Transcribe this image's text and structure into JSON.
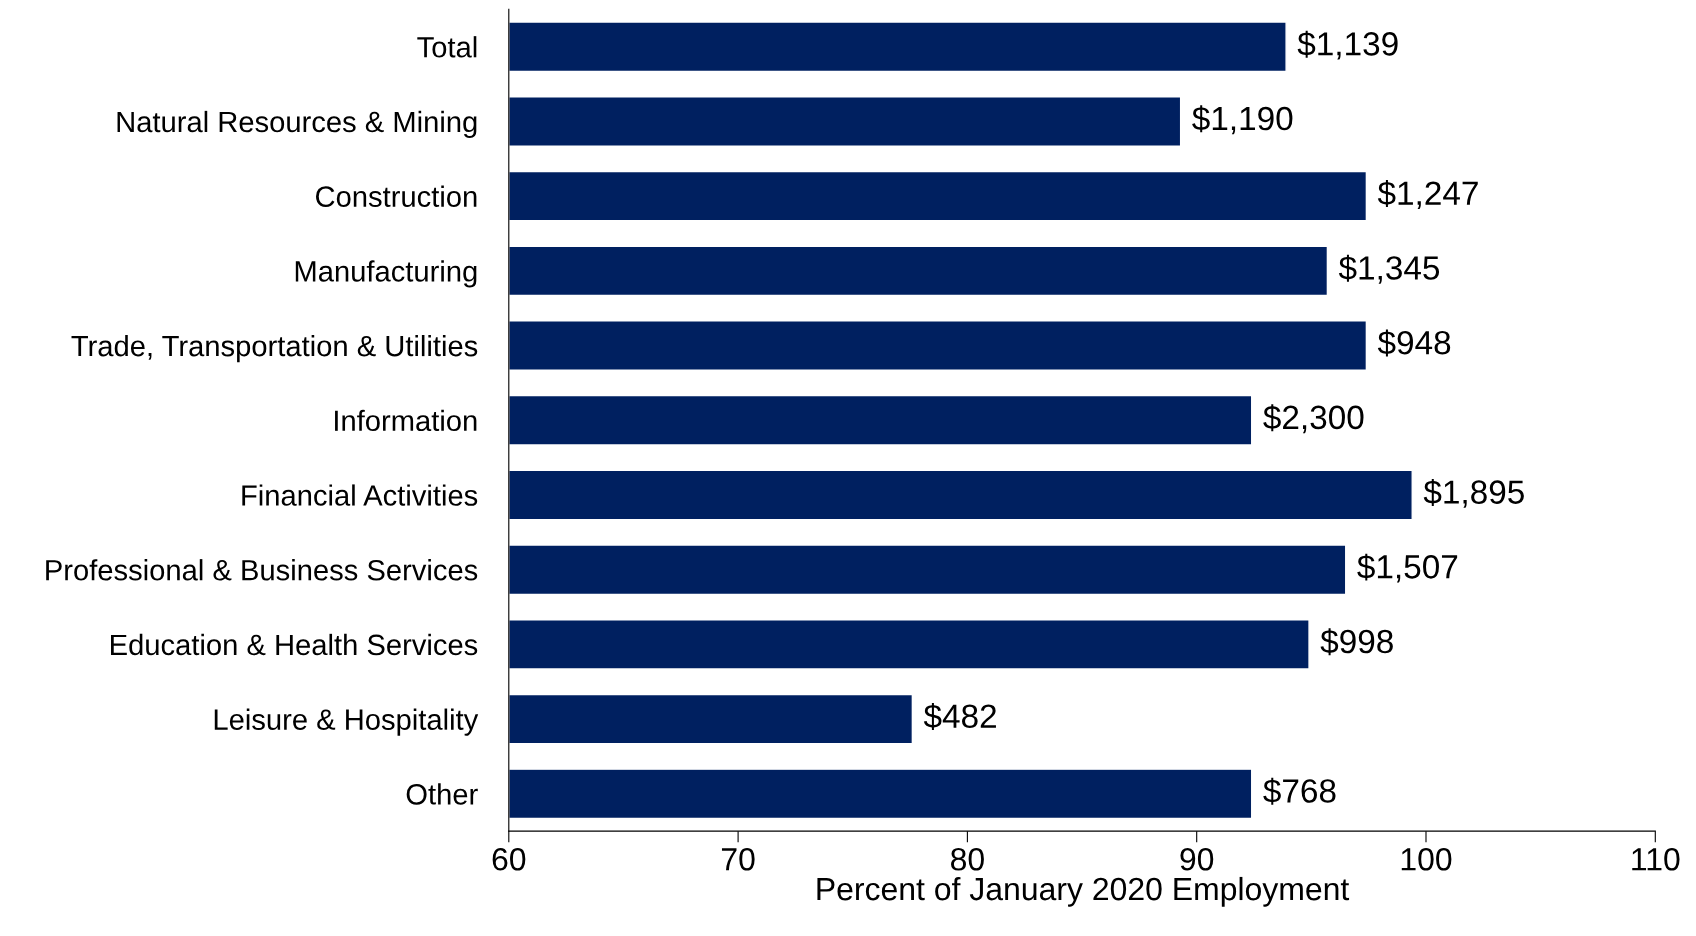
{
  "chart_data": {
    "type": "bar",
    "orientation": "horizontal",
    "xlabel": "Percent of January 2020 Employment",
    "categories": [
      "Total",
      "Natural Resources & Mining",
      "Construction",
      "Manufacturing",
      "Trade, Transportation & Utilities",
      "Information",
      "Financial Activities",
      "Professional & Business Services",
      "Education & Health Services",
      "Leisure & Hospitality",
      "Other"
    ],
    "values": [
      93.9,
      89.3,
      97.4,
      95.7,
      97.4,
      92.4,
      99.4,
      96.5,
      94.9,
      77.6,
      92.4
    ],
    "annotations": [
      {
        "text": "$1,139",
        "x": 93.9,
        "y": "Total"
      },
      {
        "text": "$1,190",
        "x": 89.3,
        "y": "Natural Resources & Mining"
      },
      {
        "text": "$1,247",
        "x": 97.4,
        "y": "Construction"
      },
      {
        "text": "$1,345",
        "x": 95.7,
        "y": "Manufacturing"
      },
      {
        "text": "$948",
        "x": 97.4,
        "y": "Trade, Transportation & Utilities"
      },
      {
        "text": "$2,300",
        "x": 92.4,
        "y": "Information"
      },
      {
        "text": "$1,895",
        "x": 99.4,
        "y": "Financial Activities"
      },
      {
        "text": "$1,507",
        "x": 96.5,
        "y": "Professional & Business Services"
      },
      {
        "text": "$998",
        "x": 94.9,
        "y": "Education & Health Services"
      },
      {
        "text": "$482",
        "x": 77.6,
        "y": "Leisure & Hospitality"
      },
      {
        "text": "$768",
        "x": 92.4,
        "y": "Other"
      }
    ],
    "color": "#002060",
    "xlim": [
      60,
      110
    ],
    "xticks": [
      60,
      70,
      80,
      90,
      100,
      110
    ],
    "grid": false,
    "legend": false
  }
}
